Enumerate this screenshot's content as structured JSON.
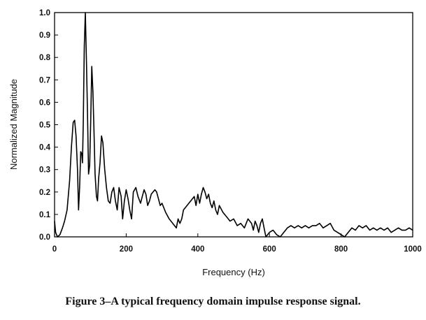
{
  "figure": {
    "caption": "Figure 3–A typical frequency domain impulse response signal."
  },
  "chart_data": {
    "type": "line",
    "xlabel": "Frequency (Hz)",
    "ylabel": "Normalized Magnitude",
    "xlim": [
      0,
      1000
    ],
    "ylim": [
      0,
      1.0
    ],
    "xticks": [
      "0",
      "200",
      "400",
      "600",
      "800",
      "1000"
    ],
    "yticks": [
      "0.0",
      "0.1",
      "0.2",
      "0.3",
      "0.4",
      "0.5",
      "0.6",
      "0.7",
      "0.8",
      "0.9",
      "1.0"
    ],
    "grid": false,
    "series": [
      {
        "x": [
          0,
          3,
          8,
          15,
          22,
          28,
          35,
          42,
          47,
          52,
          56,
          60,
          64,
          67,
          70,
          73,
          76,
          78,
          80,
          83,
          86,
          89,
          92,
          95,
          98,
          101,
          104,
          107,
          110,
          113,
          117,
          120,
          123,
          127,
          131,
          135,
          140,
          145,
          150,
          155,
          160,
          165,
          170,
          175,
          180,
          186,
          190,
          195,
          200,
          205,
          210,
          215,
          220,
          227,
          233,
          240,
          245,
          250,
          255,
          260,
          265,
          270,
          275,
          280,
          285,
          290,
          295,
          300,
          310,
          320,
          330,
          340,
          345,
          350,
          355,
          360,
          370,
          380,
          390,
          395,
          400,
          405,
          410,
          415,
          420,
          425,
          430,
          435,
          440,
          445,
          450,
          455,
          460,
          470,
          480,
          490,
          500,
          510,
          520,
          530,
          540,
          550,
          555,
          560,
          565,
          570,
          575,
          580,
          585,
          590,
          600,
          610,
          620,
          630,
          640,
          650,
          660,
          670,
          680,
          690,
          700,
          710,
          720,
          730,
          740,
          750,
          760,
          770,
          780,
          790,
          800,
          810,
          820,
          830,
          840,
          850,
          860,
          870,
          880,
          890,
          900,
          910,
          920,
          930,
          940,
          950,
          960,
          970,
          980,
          990,
          1000
        ],
        "y": [
          0.07,
          0.02,
          0.0,
          0.01,
          0.04,
          0.07,
          0.12,
          0.25,
          0.4,
          0.51,
          0.52,
          0.45,
          0.3,
          0.12,
          0.22,
          0.38,
          0.37,
          0.33,
          0.5,
          0.85,
          1.0,
          0.78,
          0.55,
          0.28,
          0.32,
          0.52,
          0.76,
          0.65,
          0.48,
          0.28,
          0.18,
          0.16,
          0.26,
          0.33,
          0.45,
          0.42,
          0.3,
          0.22,
          0.16,
          0.15,
          0.2,
          0.22,
          0.16,
          0.12,
          0.22,
          0.18,
          0.08,
          0.16,
          0.21,
          0.17,
          0.12,
          0.08,
          0.2,
          0.22,
          0.18,
          0.15,
          0.18,
          0.21,
          0.19,
          0.14,
          0.16,
          0.19,
          0.2,
          0.21,
          0.2,
          0.17,
          0.14,
          0.15,
          0.11,
          0.08,
          0.06,
          0.04,
          0.08,
          0.06,
          0.08,
          0.12,
          0.14,
          0.16,
          0.18,
          0.14,
          0.19,
          0.15,
          0.19,
          0.22,
          0.2,
          0.17,
          0.19,
          0.15,
          0.13,
          0.16,
          0.12,
          0.1,
          0.14,
          0.11,
          0.09,
          0.07,
          0.08,
          0.05,
          0.06,
          0.04,
          0.08,
          0.06,
          0.03,
          0.07,
          0.05,
          0.02,
          0.06,
          0.08,
          0.04,
          0.0,
          0.02,
          0.03,
          0.01,
          0.0,
          0.02,
          0.04,
          0.05,
          0.04,
          0.05,
          0.04,
          0.05,
          0.04,
          0.05,
          0.05,
          0.06,
          0.04,
          0.05,
          0.06,
          0.03,
          0.02,
          0.01,
          0.0,
          0.02,
          0.04,
          0.03,
          0.05,
          0.04,
          0.05,
          0.03,
          0.04,
          0.03,
          0.04,
          0.03,
          0.04,
          0.02,
          0.03,
          0.04,
          0.03,
          0.03,
          0.04,
          0.03
        ]
      }
    ]
  }
}
